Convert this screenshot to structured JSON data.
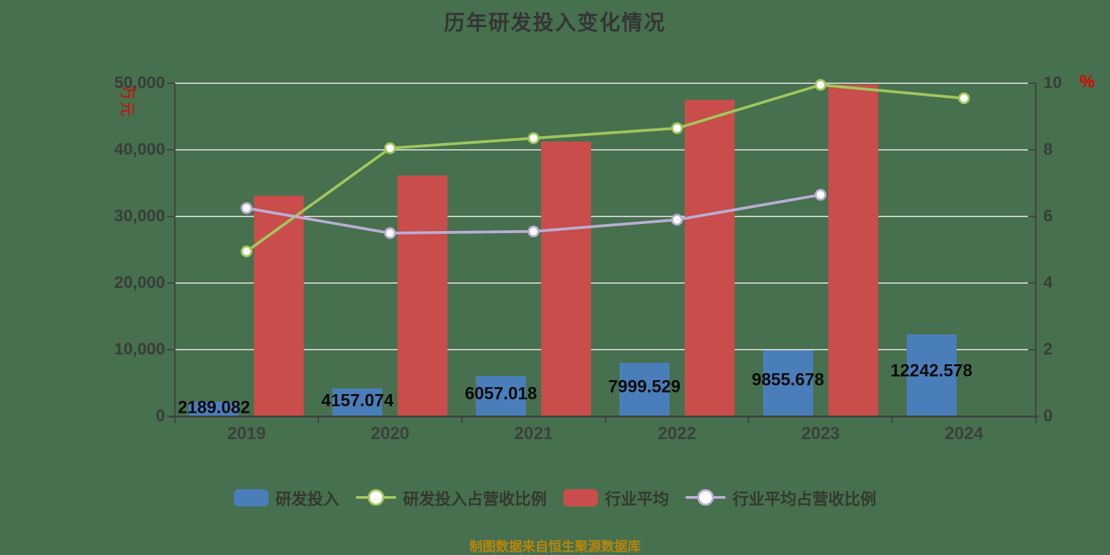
{
  "title": "历年研发投入变化情况",
  "footer_note": "制图数据来自恒生聚源数据库",
  "colors": {
    "background": "#47704E",
    "gridline": "#C9CFC9",
    "axis": "#3F4540",
    "title_text": "#353535",
    "value_label_text": "#0B0B0B",
    "unit_text": "#E00000",
    "footer_text": "#B8860B",
    "marker_fill": "#FFFFFF"
  },
  "chart_data": {
    "type": "combo-bar-line",
    "title": "历年研发投入变化情况",
    "categories": [
      "2019",
      "2020",
      "2021",
      "2022",
      "2023",
      "2024"
    ],
    "left_axis": {
      "unit": "万元",
      "min": 0,
      "max": 50000,
      "ticks": [
        "0",
        "10,000",
        "20,000",
        "30,000",
        "40,000",
        "50,000"
      ]
    },
    "right_axis": {
      "unit": "%",
      "min": 0,
      "max": 10,
      "ticks": [
        "0",
        "2",
        "4",
        "6",
        "8",
        "10"
      ]
    },
    "grid": "horizontal-on",
    "legend_position": "bottom-center",
    "series": [
      {
        "name": "研发投入",
        "type": "bar",
        "axis": "left",
        "color": "#4A7EBB",
        "values": [
          2189.082,
          4157.074,
          6057.018,
          7999.529,
          9855.678,
          12242.578
        ],
        "value_labels": [
          "2189.082",
          "4157.074",
          "6057.018",
          "7999.529",
          "9855.678",
          "12242.578"
        ]
      },
      {
        "name": "研发投入占营收比例",
        "type": "line",
        "axis": "right",
        "color": "#A0C65C",
        "values": [
          4.95,
          8.05,
          8.35,
          8.65,
          9.95,
          9.55
        ]
      },
      {
        "name": "行业平均",
        "type": "bar",
        "axis": "left",
        "color": "#C94D4A",
        "values": [
          33100,
          36100,
          41300,
          47450,
          49800,
          null
        ]
      },
      {
        "name": "行业平均占营收比例",
        "type": "line",
        "axis": "right",
        "color": "#BAADD4",
        "values": [
          6.25,
          5.5,
          5.55,
          5.9,
          6.65,
          null
        ]
      }
    ]
  }
}
